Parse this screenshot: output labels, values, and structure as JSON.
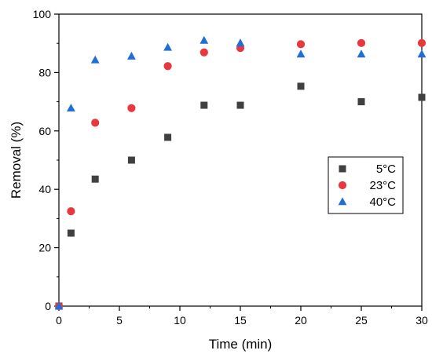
{
  "chart_data": {
    "type": "scatter",
    "title": "",
    "xlabel": "Time (min)",
    "ylabel": "Removal (%)",
    "xlim": [
      0,
      30
    ],
    "ylim": [
      0,
      100
    ],
    "xticks": [
      0,
      5,
      10,
      15,
      20,
      25,
      30
    ],
    "yticks": [
      0,
      20,
      40,
      60,
      80,
      100
    ],
    "grid": false,
    "legend_position": "right",
    "series": [
      {
        "name": "5°C",
        "marker": "square",
        "color": "#404040",
        "x": [
          0,
          1,
          3,
          6,
          9,
          12,
          15,
          20,
          25,
          30
        ],
        "y": [
          0,
          25,
          43.5,
          50,
          57.8,
          68.8,
          68.8,
          75.3,
          70,
          71.5
        ]
      },
      {
        "name": "23°C",
        "marker": "circle",
        "color": "#e8383d",
        "x": [
          0,
          1,
          3,
          6,
          9,
          12,
          15,
          20,
          25,
          30
        ],
        "y": [
          0,
          32.5,
          62.8,
          67.8,
          82.2,
          86.9,
          88.4,
          89.7,
          90.1,
          90.1
        ]
      },
      {
        "name": "40°C",
        "marker": "triangle",
        "color": "#1f6fd6",
        "x": [
          0,
          1,
          3,
          6,
          9,
          12,
          15,
          20,
          25,
          30
        ],
        "y": [
          0,
          67.8,
          84.3,
          85.6,
          88.6,
          91,
          90.1,
          86.3,
          86.3,
          86.3
        ]
      }
    ]
  }
}
